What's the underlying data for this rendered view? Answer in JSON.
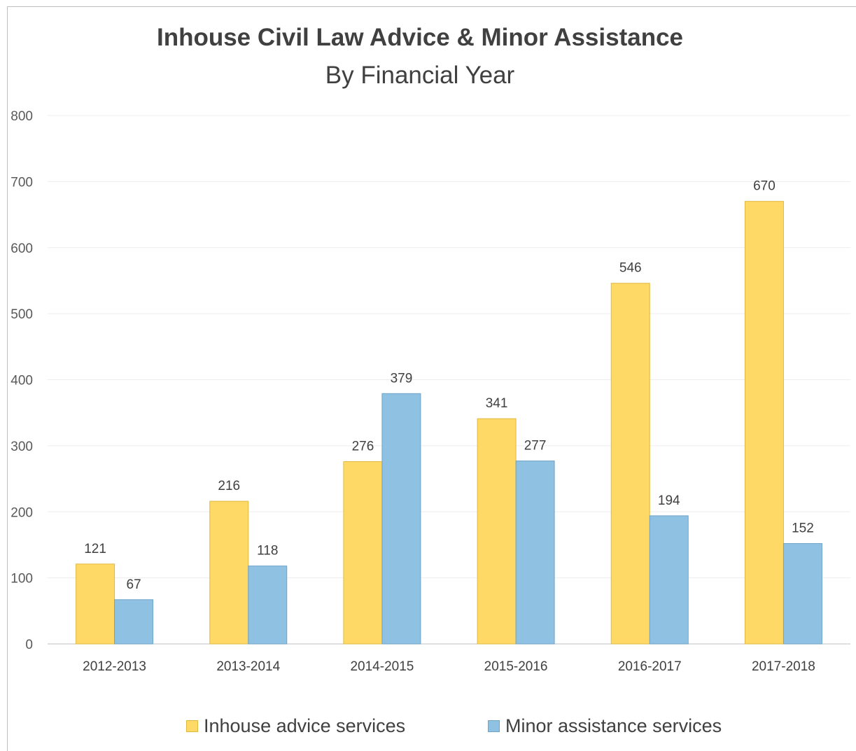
{
  "chart_data": {
    "type": "bar",
    "title": "Inhouse Civil Law Advice & Minor Assistance",
    "subtitle": "By Financial Year",
    "categories": [
      "2012-2013",
      "2013-2014",
      "2014-2015",
      "2015-2016",
      "2016-2017",
      "2017-2018"
    ],
    "series": [
      {
        "name": "Inhouse advice services",
        "values": [
          121,
          216,
          276,
          341,
          546,
          670
        ],
        "color": "#ffd966"
      },
      {
        "name": "Minor assistance services",
        "values": [
          67,
          118,
          379,
          277,
          194,
          152
        ],
        "color": "#8fc1e3"
      }
    ],
    "ylim": [
      0,
      800
    ],
    "yticks": [
      0,
      100,
      200,
      300,
      400,
      500,
      600,
      700,
      800
    ],
    "grid": true,
    "legend_position": "bottom"
  }
}
